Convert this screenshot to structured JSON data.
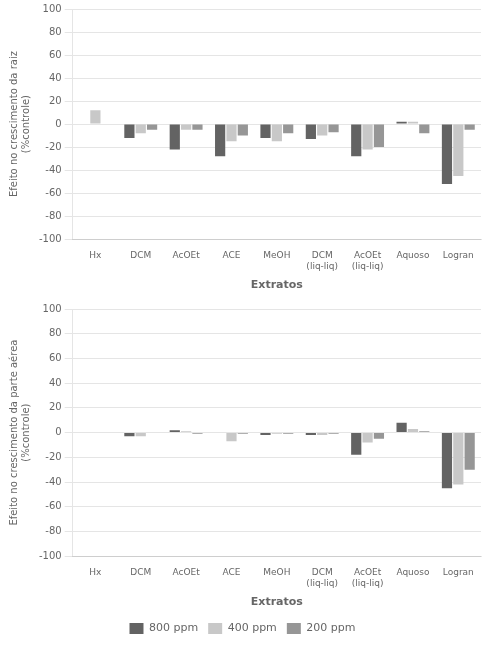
{
  "chart_data": [
    {
      "type": "bar",
      "categories": [
        "Hx",
        "DCM",
        "AcOEt",
        "ACE",
        "MeOH",
        "DCM\n(liq-liq)",
        "AcOEt\n(liq-liq)",
        "Aquoso",
        "Logran"
      ],
      "series": [
        {
          "name": "800 ppm",
          "color": "#636363",
          "values": [
            0,
            -12,
            -22,
            -28,
            -12,
            -13,
            -28,
            2,
            -52
          ]
        },
        {
          "name": "400 ppm",
          "color": "#c8c8c8",
          "values": [
            12,
            -8,
            -5,
            -15,
            -15,
            -10,
            -22,
            2,
            -45
          ]
        },
        {
          "name": "200 ppm",
          "color": "#969696",
          "values": [
            0,
            -5,
            -5,
            -10,
            -8,
            -7,
            -20,
            -8,
            -5
          ]
        }
      ],
      "ylabel": "Efeito no crescimento da raiz\n(%controle)",
      "xlabel": "Extratos",
      "ylim": [
        -100,
        100
      ],
      "yticks": [
        -100,
        -80,
        -60,
        -40,
        -20,
        0,
        20,
        40,
        60,
        80,
        100
      ],
      "grid": true
    },
    {
      "type": "bar",
      "categories": [
        "Hx",
        "DCM",
        "AcOEt",
        "ACE",
        "MeOH",
        "DCM\n(liq-liq)",
        "AcOEt\n(liq-liq)",
        "Aquoso",
        "Logran"
      ],
      "series": [
        {
          "name": "800 ppm",
          "color": "#636363",
          "values": [
            0,
            -3,
            2,
            0,
            -2,
            -2,
            -18,
            8,
            -45
          ]
        },
        {
          "name": "400 ppm",
          "color": "#c8c8c8",
          "values": [
            0,
            -3,
            1,
            -7,
            -1,
            -2,
            -8,
            3,
            -42
          ]
        },
        {
          "name": "200 ppm",
          "color": "#969696",
          "values": [
            0,
            0,
            -1,
            -1,
            -1,
            -1,
            -5,
            1,
            -30
          ]
        }
      ],
      "ylabel": "Efeito no crescimento da parte aérea\n(%controle)",
      "xlabel": "Extratos",
      "ylim": [
        -100,
        100
      ],
      "yticks": [
        -100,
        -80,
        -60,
        -40,
        -20,
        0,
        20,
        40,
        60,
        80,
        100
      ],
      "grid": true,
      "legend": "bottom"
    }
  ]
}
